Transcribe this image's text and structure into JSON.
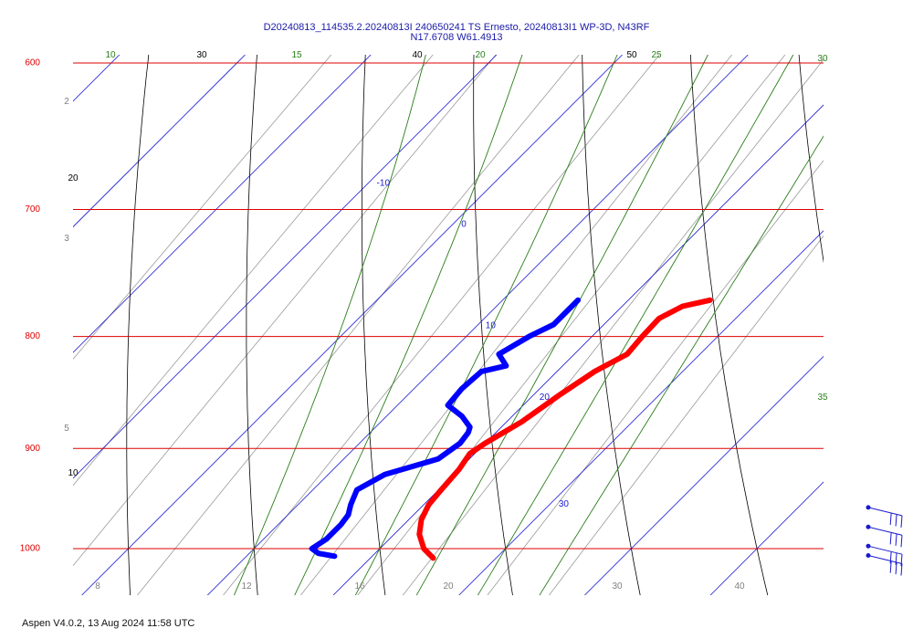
{
  "title_line1": "D20240813_114535.2.20240813I 240650241 TS Ernesto, 20240813I1 WP-3D, N43RF",
  "title_line2": "N17.6708 W61.4913",
  "footer": "Aspen V4.0.2, 13 Aug 2024  11:58 UTC",
  "colors": {
    "isobar": "#dd0000",
    "isotherm": "#1a1ad0",
    "dry_adiabat": "#000000",
    "moist_adiabat": "#2a7d1a",
    "mixing_ratio": "#9a9a9a",
    "temperature": "#ff0000",
    "dewpoint": "#0000ff",
    "wind": "#1a1ad0"
  },
  "chart_data": {
    "type": "line",
    "chart_kind": "skew-T log-P diagram",
    "title": "D20240813_114535.2.20240813I 240650241 TS Ernesto, 20240813I1 WP-3D, N43RF",
    "subtitle": "N17.6708 W61.4913",
    "pressure_levels": [
      "600",
      "700",
      "800",
      "900",
      "1000"
    ],
    "isotherm_labels": [
      "-10",
      "0",
      "10",
      "20",
      "30"
    ],
    "dry_adiabat_labels": [
      "30",
      "40",
      "50",
      "20",
      "10"
    ],
    "moist_adiabat_labels": [
      "10",
      "15",
      "20",
      "25",
      "30",
      "35"
    ],
    "mixing_ratio_labels": [
      "8",
      "12",
      "16",
      "20",
      "30",
      "40",
      "2",
      "3",
      "5"
    ],
    "pressure_range": [
      1040,
      600
    ],
    "grid": true,
    "series": [
      {
        "name": "",
        "variable": "temperature",
        "points": [
          [
            770,
            26.5
          ],
          [
            775,
            24.8
          ],
          [
            785,
            23.9
          ],
          [
            800,
            24.0
          ],
          [
            815,
            24.2
          ],
          [
            830,
            23.0
          ],
          [
            850,
            22.1
          ],
          [
            875,
            21.2
          ],
          [
            895,
            20.0
          ],
          [
            905,
            19.6
          ],
          [
            920,
            20.0
          ],
          [
            940,
            20.2
          ],
          [
            955,
            20.4
          ],
          [
            970,
            21.0
          ],
          [
            985,
            22.0
          ],
          [
            1000,
            23.5
          ],
          [
            1010,
            25.0
          ]
        ]
      },
      {
        "name": "",
        "variable": "dewpoint",
        "points": [
          [
            770,
            16.0
          ],
          [
            790,
            16.0
          ],
          [
            800,
            15.0
          ],
          [
            815,
            14.0
          ],
          [
            825,
            15.5
          ],
          [
            830,
            14.0
          ],
          [
            845,
            13.8
          ],
          [
            860,
            14.0
          ],
          [
            870,
            16.0
          ],
          [
            880,
            17.5
          ],
          [
            885,
            17.8
          ],
          [
            895,
            18.0
          ],
          [
            910,
            17.5
          ],
          [
            925,
            14.5
          ],
          [
            940,
            13.5
          ],
          [
            955,
            14.2
          ],
          [
            965,
            14.8
          ],
          [
            975,
            15.0
          ],
          [
            990,
            15.0
          ],
          [
            1000,
            14.6
          ],
          [
            1005,
            15.5
          ],
          [
            1008,
            17.0
          ]
        ]
      }
    ],
    "wind_barbs": [
      {
        "pressure": 965,
        "speed_kt": 30
      },
      {
        "pressure": 985,
        "speed_kt": 30
      },
      {
        "pressure": 1005,
        "speed_kt": 30
      },
      {
        "pressure": 1015,
        "speed_kt": 30
      }
    ]
  }
}
